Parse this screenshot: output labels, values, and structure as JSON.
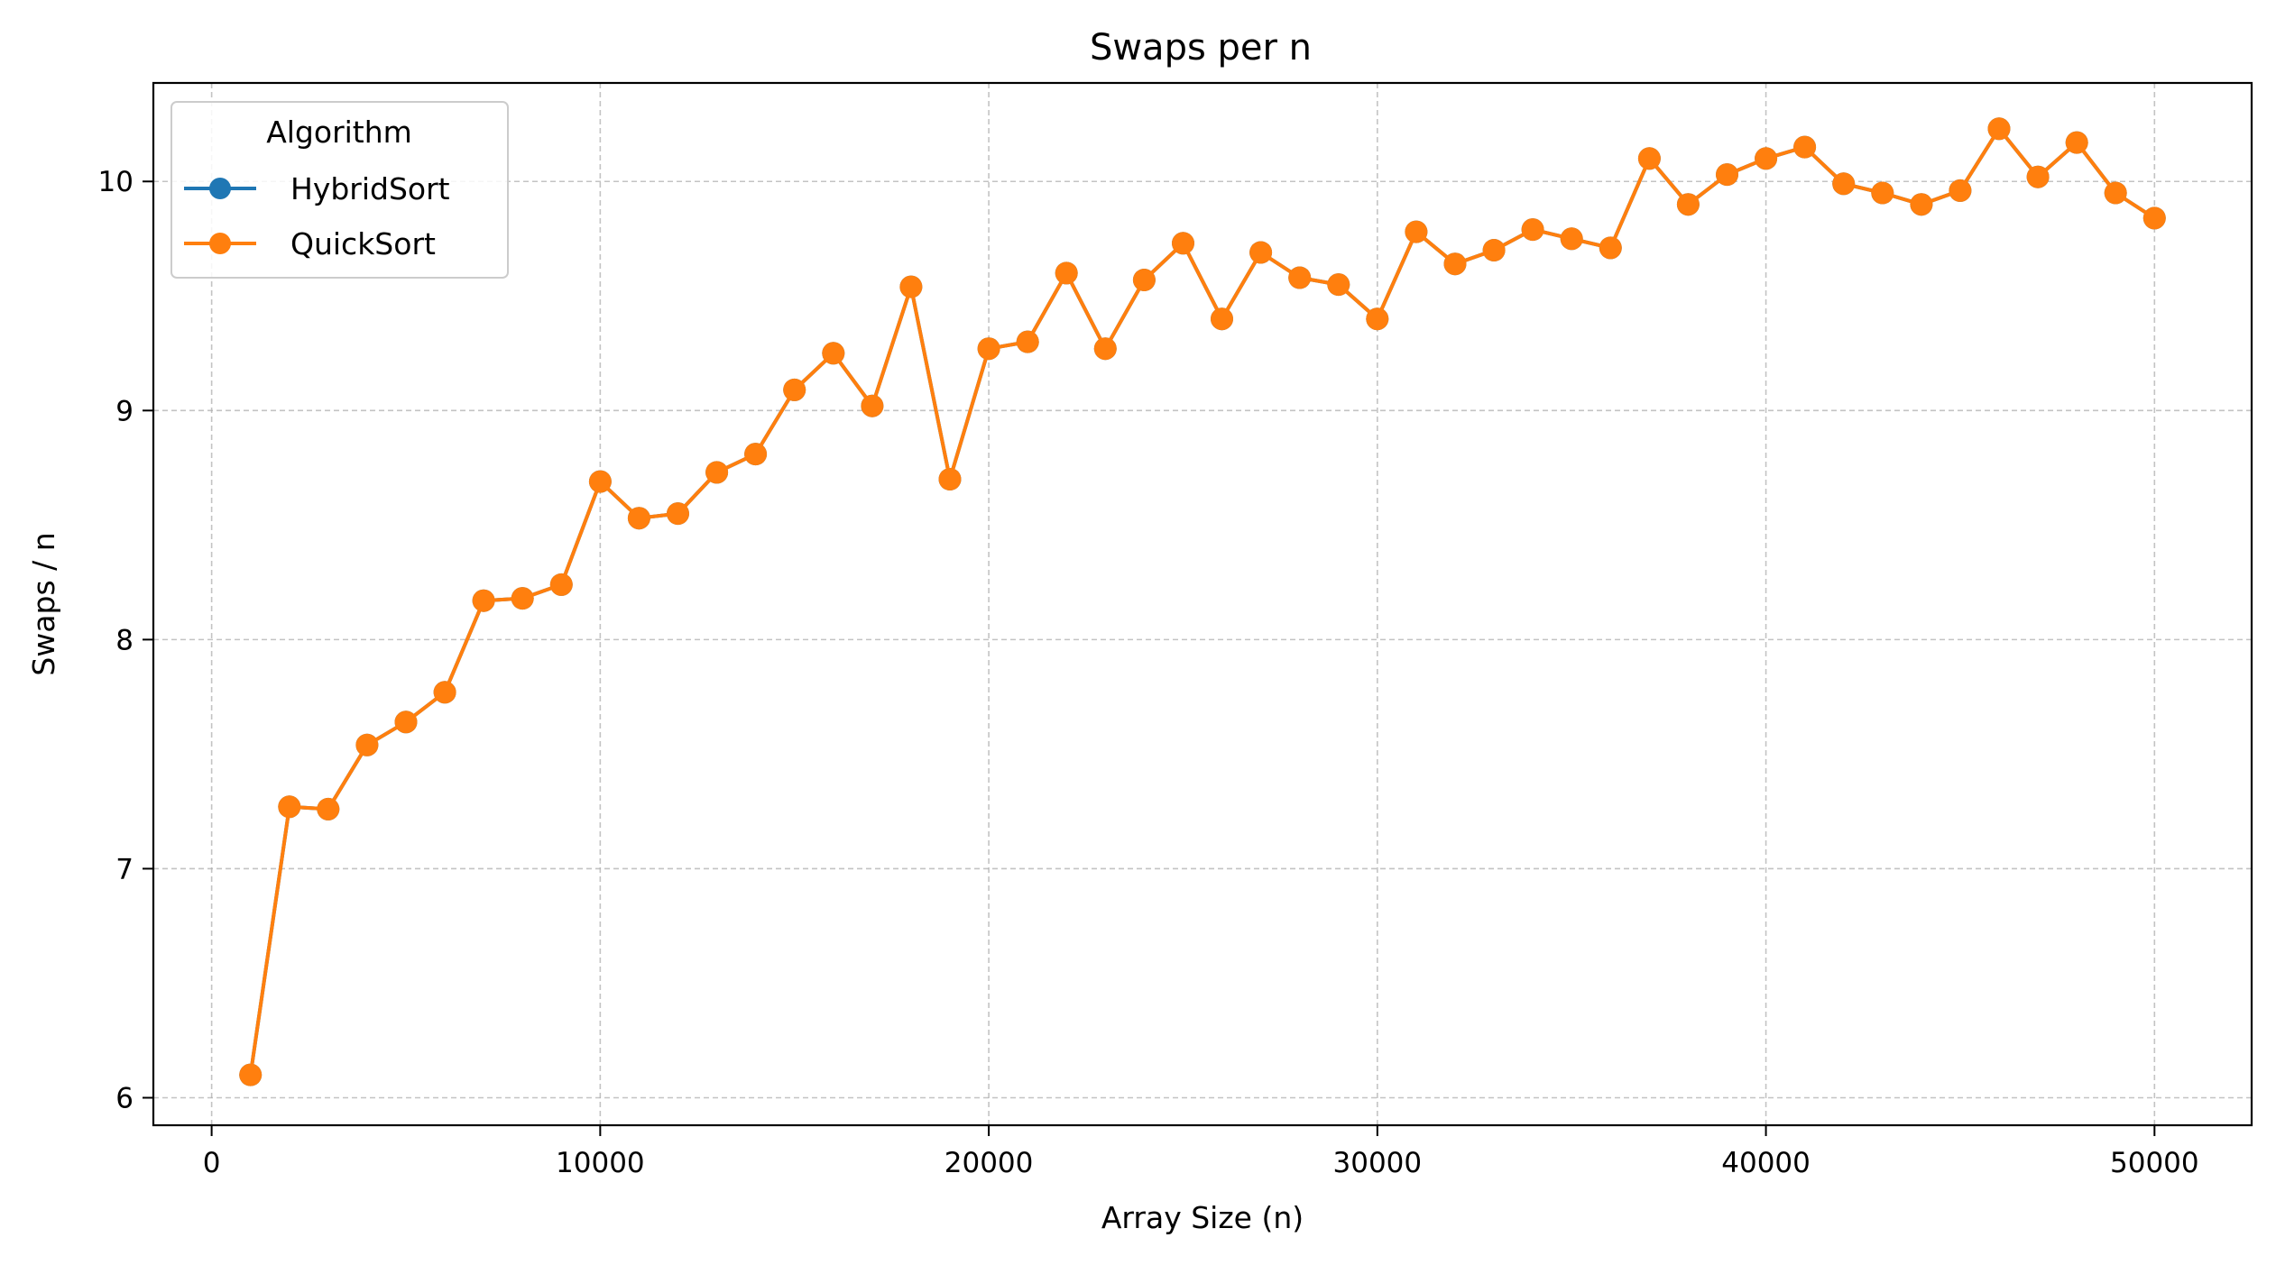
{
  "chart_data": {
    "type": "line",
    "title": "Swaps per n",
    "xlabel": "Array Size (n)",
    "ylabel": "Swaps / n",
    "xlim": [
      -1500,
      52500
    ],
    "ylim": [
      5.88,
      10.43
    ],
    "xticks": [
      0,
      10000,
      20000,
      30000,
      40000,
      50000
    ],
    "yticks": [
      6,
      7,
      8,
      9,
      10
    ],
    "grid": true,
    "legend": {
      "title": "Algorithm",
      "placement": "top-left"
    },
    "x": [
      1000,
      2000,
      3000,
      4000,
      5000,
      6000,
      7000,
      8000,
      9000,
      10000,
      11000,
      12000,
      13000,
      14000,
      15000,
      16000,
      17000,
      18000,
      19000,
      20000,
      21000,
      22000,
      23000,
      24000,
      25000,
      26000,
      27000,
      28000,
      29000,
      30000,
      31000,
      32000,
      33000,
      34000,
      35000,
      36000,
      37000,
      38000,
      39000,
      40000,
      41000,
      42000,
      43000,
      44000,
      45000,
      46000,
      47000,
      48000,
      49000,
      50000
    ],
    "series": [
      {
        "name": "HybridSort",
        "color": "#1f77b4",
        "values": [
          6.1,
          7.27,
          7.26,
          7.54,
          7.64,
          7.77,
          8.17,
          8.18,
          8.24,
          8.69,
          8.53,
          8.55,
          8.73,
          8.81,
          9.09,
          9.25,
          9.02,
          9.54,
          8.7,
          9.27,
          9.3,
          9.6,
          9.27,
          9.57,
          9.73,
          9.4,
          9.69,
          9.58,
          9.55,
          9.4,
          9.78,
          9.64,
          9.7,
          9.79,
          9.75,
          9.71,
          10.1,
          9.9,
          10.03,
          10.1,
          10.15,
          9.99,
          9.95,
          9.9,
          9.96,
          10.23,
          10.02,
          10.17,
          9.95,
          9.84
        ]
      },
      {
        "name": "QuickSort",
        "color": "#ff7f0e",
        "values": [
          6.1,
          7.27,
          7.26,
          7.54,
          7.64,
          7.77,
          8.17,
          8.18,
          8.24,
          8.69,
          8.53,
          8.55,
          8.73,
          8.81,
          9.09,
          9.25,
          9.02,
          9.54,
          8.7,
          9.27,
          9.3,
          9.6,
          9.27,
          9.57,
          9.73,
          9.4,
          9.69,
          9.58,
          9.55,
          9.4,
          9.78,
          9.64,
          9.7,
          9.79,
          9.75,
          9.71,
          10.1,
          9.9,
          10.03,
          10.1,
          10.15,
          9.99,
          9.95,
          9.9,
          9.96,
          10.23,
          10.02,
          10.17,
          9.95,
          9.84
        ]
      }
    ]
  }
}
